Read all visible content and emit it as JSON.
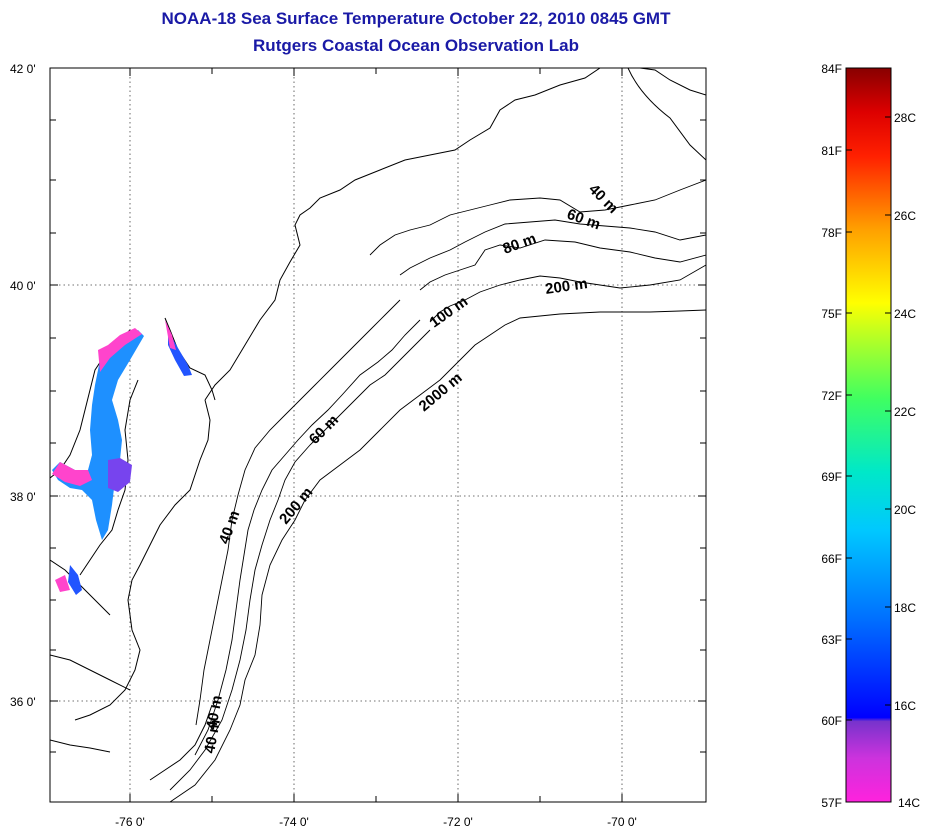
{
  "header": {
    "title": "NOAA-18 Sea Surface Temperature October 22, 2010 0845 GMT",
    "subtitle": "Rutgers Coastal Ocean Observation Lab"
  },
  "map": {
    "lat_labels": [
      "42 0'",
      "40 0'",
      "38 0'",
      "36 0'"
    ],
    "lon_labels": [
      "-76 0'",
      "-74 0'",
      "-72 0'",
      "-70 0'"
    ],
    "contour_labels": [
      "40 m",
      "60 m",
      "80 m",
      "200 m",
      "100 m",
      "2000 m",
      "60 m",
      "200 m",
      "40 m",
      "40 m"
    ],
    "colors": {
      "water_blue": "#1e90ff",
      "estuary_pink": "#ff44cc",
      "land_line": "#000000"
    }
  },
  "colorbar": {
    "fahrenheit_labels": [
      "84F",
      "81F",
      "78F",
      "75F",
      "72F",
      "69F",
      "66F",
      "63F",
      "60F",
      "57F"
    ],
    "celsius_labels": [
      "28C",
      "26C",
      "24C",
      "22C",
      "20C",
      "18C",
      "16C",
      "14C"
    ],
    "colors": [
      "#ff22dd",
      "#9933cc",
      "#0000ff",
      "#00aaff",
      "#00e0d0",
      "#40ff60",
      "#ffff00",
      "#ff8800",
      "#ff0000",
      "#990000"
    ]
  }
}
